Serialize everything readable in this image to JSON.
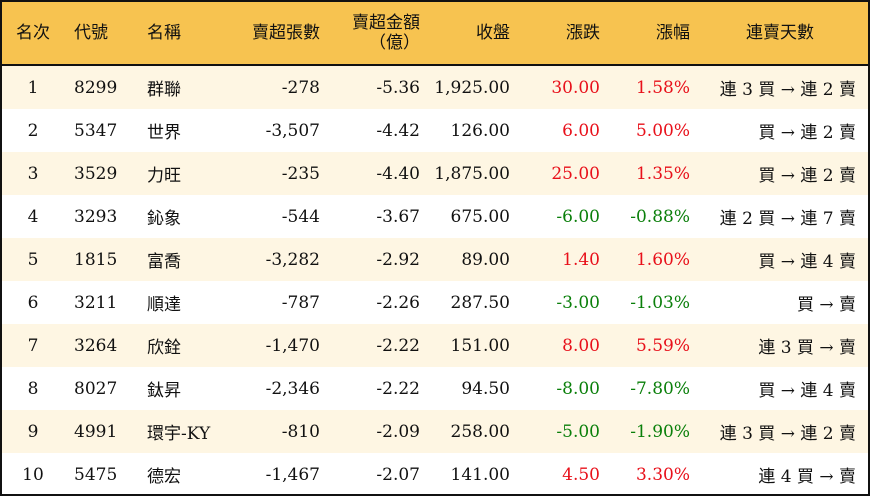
{
  "headers": {
    "rank": "名次",
    "code": "代號",
    "name": "名稱",
    "net_sell_lots": "賣超張數",
    "net_sell_amount": "賣超金額",
    "net_sell_amount_unit": "（億）",
    "close": "收盤",
    "change": "漲跌",
    "change_pct": "漲幅",
    "streak": "連賣天數"
  },
  "colors": {
    "header_bg": "#F7C350",
    "alt_row_bg": "#FEF6E3",
    "up": "#e8101a",
    "down": "#0a7f0a"
  },
  "rows": [
    {
      "rank": "1",
      "code": "8299",
      "name": "群聯",
      "lots": "-278",
      "amount": "-5.36",
      "close": "1,925.00",
      "change": "30.00",
      "pct": "1.58%",
      "streak": "連 3 買 → 連 2 賣",
      "dir": "up"
    },
    {
      "rank": "2",
      "code": "5347",
      "name": "世界",
      "lots": "-3,507",
      "amount": "-4.42",
      "close": "126.00",
      "change": "6.00",
      "pct": "5.00%",
      "streak": "買 → 連 2 賣",
      "dir": "up"
    },
    {
      "rank": "3",
      "code": "3529",
      "name": "力旺",
      "lots": "-235",
      "amount": "-4.40",
      "close": "1,875.00",
      "change": "25.00",
      "pct": "1.35%",
      "streak": "買 → 連 2 賣",
      "dir": "up"
    },
    {
      "rank": "4",
      "code": "3293",
      "name": "鈊象",
      "lots": "-544",
      "amount": "-3.67",
      "close": "675.00",
      "change": "-6.00",
      "pct": "-0.88%",
      "streak": "連 2 買 → 連 7 賣",
      "dir": "down"
    },
    {
      "rank": "5",
      "code": "1815",
      "name": "富喬",
      "lots": "-3,282",
      "amount": "-2.92",
      "close": "89.00",
      "change": "1.40",
      "pct": "1.60%",
      "streak": "買 → 連 4 賣",
      "dir": "up"
    },
    {
      "rank": "6",
      "code": "3211",
      "name": "順達",
      "lots": "-787",
      "amount": "-2.26",
      "close": "287.50",
      "change": "-3.00",
      "pct": "-1.03%",
      "streak": "買 → 賣",
      "dir": "down"
    },
    {
      "rank": "7",
      "code": "3264",
      "name": "欣銓",
      "lots": "-1,470",
      "amount": "-2.22",
      "close": "151.00",
      "change": "8.00",
      "pct": "5.59%",
      "streak": "連 3 買 → 賣",
      "dir": "up"
    },
    {
      "rank": "8",
      "code": "8027",
      "name": "鈦昇",
      "lots": "-2,346",
      "amount": "-2.22",
      "close": "94.50",
      "change": "-8.00",
      "pct": "-7.80%",
      "streak": "買 → 連 4 賣",
      "dir": "down"
    },
    {
      "rank": "9",
      "code": "4991",
      "name": "環宇-KY",
      "lots": "-810",
      "amount": "-2.09",
      "close": "258.00",
      "change": "-5.00",
      "pct": "-1.90%",
      "streak": "連 3 買 → 連 2 賣",
      "dir": "down"
    },
    {
      "rank": "10",
      "code": "5475",
      "name": "德宏",
      "lots": "-1,467",
      "amount": "-2.07",
      "close": "141.00",
      "change": "4.50",
      "pct": "3.30%",
      "streak": "連 4 買 → 賣",
      "dir": "up"
    }
  ]
}
